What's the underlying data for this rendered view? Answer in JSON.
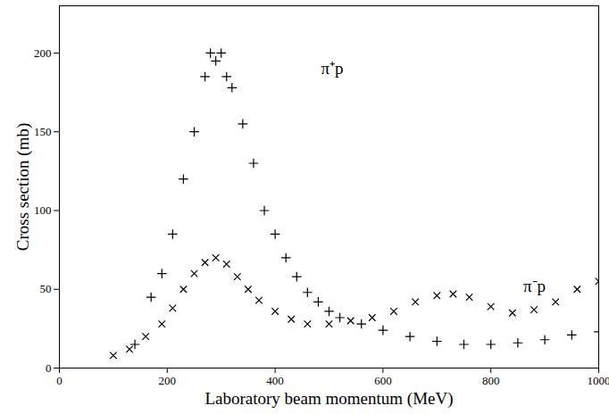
{
  "chart_data": {
    "type": "scatter",
    "x_label": "Laboratory beam momentum (MeV)",
    "y_label": "Cross section (mb)",
    "xlim": [
      0,
      1000
    ],
    "xticks": [
      0,
      200,
      400,
      600,
      800,
      1000
    ],
    "ylim": [
      0,
      230
    ],
    "yticks": [
      0,
      50,
      100,
      150,
      200
    ],
    "grid": false,
    "annotations": [
      {
        "text": "π⁺p",
        "x": 485,
        "y": 190
      },
      {
        "text": "π⁻p",
        "x": 860,
        "y": 52
      }
    ],
    "series": [
      {
        "name": "π⁺p",
        "color": "#000000",
        "marker": "plus",
        "x": [
          140,
          170,
          190,
          210,
          230,
          250,
          270,
          280,
          290,
          300,
          310,
          320,
          340,
          360,
          380,
          400,
          420,
          440,
          460,
          480,
          500,
          520,
          560,
          600,
          650,
          700,
          750,
          800,
          850,
          900,
          950,
          1000
        ],
        "values": [
          15,
          45,
          60,
          85,
          120,
          150,
          185,
          200,
          195,
          200,
          185,
          178,
          155,
          130,
          100,
          85,
          70,
          58,
          48,
          42,
          36,
          32,
          28,
          24,
          20,
          17,
          15,
          15,
          16,
          18,
          21,
          23
        ]
      },
      {
        "name": "π⁻p",
        "color": "#000000",
        "marker": "times",
        "x": [
          100,
          130,
          160,
          190,
          210,
          230,
          250,
          270,
          290,
          310,
          330,
          350,
          370,
          400,
          430,
          460,
          500,
          540,
          580,
          620,
          660,
          700,
          730,
          760,
          800,
          840,
          880,
          920,
          960,
          1000
        ],
        "values": [
          8,
          12,
          20,
          28,
          38,
          50,
          60,
          67,
          70,
          66,
          58,
          50,
          43,
          36,
          31,
          28,
          28,
          30,
          32,
          36,
          42,
          46,
          47,
          45,
          39,
          35,
          37,
          42,
          50,
          55
        ]
      }
    ]
  }
}
